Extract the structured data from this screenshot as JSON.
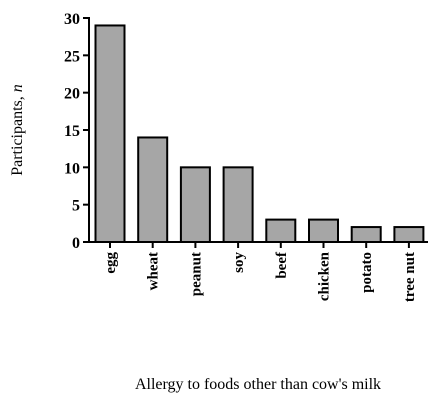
{
  "chart_data": {
    "type": "bar",
    "categories": [
      "egg",
      "wheat",
      "peanut",
      "soy",
      "beef",
      "chicken",
      "potato",
      "tree nut"
    ],
    "values": [
      29,
      14,
      10,
      10,
      3,
      3,
      2,
      2
    ],
    "xlabel": "Allergy to foods other than cow's milk",
    "ylabel_text": "Participants, ",
    "ylabel_var": "n",
    "ylim": [
      0,
      30
    ],
    "yticks": [
      0,
      5,
      10,
      15,
      20,
      25,
      30
    ],
    "bar_color": "#a6a6a6",
    "grid": false
  }
}
